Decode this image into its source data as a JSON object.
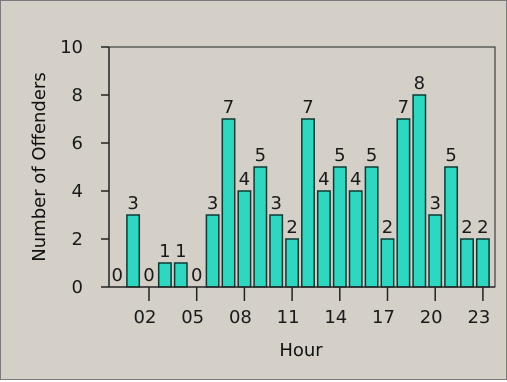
{
  "chart_data": {
    "type": "bar",
    "title": "",
    "xlabel": "Hour",
    "ylabel": "Number of Offenders",
    "x": [
      0,
      1,
      2,
      3,
      4,
      5,
      6,
      7,
      8,
      9,
      10,
      11,
      12,
      13,
      14,
      15,
      16,
      17,
      18,
      19,
      20,
      21,
      22,
      23
    ],
    "values": [
      0,
      3,
      0,
      1,
      1,
      0,
      3,
      7,
      4,
      5,
      3,
      2,
      7,
      4,
      5,
      4,
      5,
      2,
      7,
      8,
      3,
      5,
      2,
      2
    ],
    "data_labels": [
      "0",
      "3",
      "0",
      "1",
      "1",
      "0",
      "3",
      "7",
      "4",
      "5",
      "3",
      "2",
      "7",
      "4",
      "5",
      "4",
      "5",
      "2",
      "7",
      "8",
      "3",
      "5",
      "2",
      "2"
    ],
    "xticks": [
      "02",
      "05",
      "08",
      "11",
      "14",
      "17",
      "20",
      "23"
    ],
    "xtick_hours": [
      2,
      5,
      8,
      11,
      14,
      17,
      20,
      23
    ],
    "yticks": [
      "0",
      "2",
      "4",
      "6",
      "8",
      "10"
    ],
    "ylim": [
      0,
      10
    ],
    "grid": false,
    "legend": "none",
    "colors": {
      "bar_fill": "#2fd6c0",
      "bar_stroke": "#0a3a34",
      "plot_bg": "#d4d0c8",
      "outer_bg": "#d4d0c8",
      "axis": "#222222"
    }
  }
}
